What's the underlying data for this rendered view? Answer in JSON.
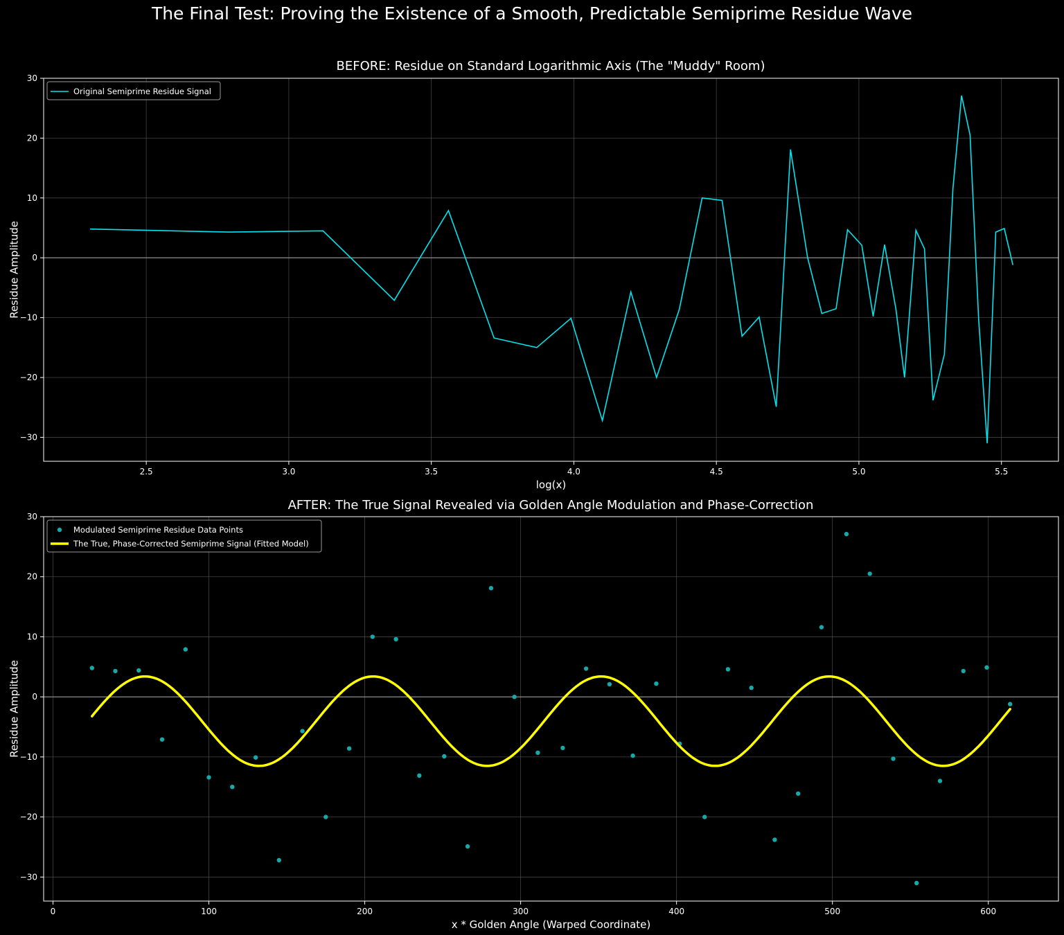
{
  "figure": {
    "suptitle": "The Final Test: Proving the Existence of a Smooth, Predictable Semiprime Residue Wave"
  },
  "colors": {
    "background": "#000000",
    "axes_edge": "#ffffff",
    "grid": "#5a5a5a",
    "zero_line": "#9a9a9a",
    "cyan": "#00e5ee",
    "scatter": "#17a8a8",
    "yellow": "#ffff00"
  },
  "chart_data": [
    {
      "type": "line",
      "title": "BEFORE: Residue on Standard Logarithmic Axis (The \"Muddy\" Room)",
      "xlabel": "log(x)",
      "ylabel": "Residue Amplitude",
      "xlim": [
        2.14,
        5.7
      ],
      "ylim": [
        -34,
        30
      ],
      "xticks": [
        2.5,
        3.0,
        3.5,
        4.0,
        4.5,
        5.0,
        5.5
      ],
      "xtick_labels": [
        "2.5",
        "3.0",
        "3.5",
        "4.0",
        "4.5",
        "5.0",
        "5.5"
      ],
      "yticks": [
        -30,
        -20,
        -10,
        0,
        10,
        20,
        30
      ],
      "ytick_labels": [
        "−30",
        "−20",
        "−10",
        "0",
        "10",
        "20",
        "30"
      ],
      "grid": true,
      "zero_line": true,
      "legend_position": "top-left",
      "series": [
        {
          "name": "Original Semiprime Residue Signal",
          "color": "#00e5ee",
          "x": [
            2.303,
            2.79,
            3.12,
            3.37,
            3.56,
            3.72,
            3.87,
            3.99,
            4.1,
            4.2,
            4.29,
            4.37,
            4.45,
            4.52,
            4.59,
            4.65,
            4.71,
            4.76,
            4.82,
            4.87,
            4.92,
            4.96,
            5.01,
            5.05,
            5.09,
            5.13,
            5.16,
            5.2,
            5.23,
            5.26,
            5.3,
            5.33,
            5.36,
            5.39,
            5.42,
            5.45,
            5.48,
            5.51,
            5.54
          ],
          "y": [
            4.8,
            4.3,
            4.5,
            -7.1,
            7.9,
            -13.4,
            -15.0,
            -10.1,
            -27.2,
            -5.7,
            -20.0,
            -8.6,
            10.0,
            9.6,
            -13.1,
            -9.9,
            -24.9,
            18.1,
            0.0,
            -9.3,
            -8.5,
            4.7,
            2.1,
            -9.8,
            2.2,
            -8.6,
            -20.0,
            4.6,
            1.5,
            -23.8,
            -16.1,
            11.6,
            27.1,
            20.5,
            -10.3,
            -31.0,
            4.3,
            4.9,
            -1.2
          ]
        }
      ]
    },
    {
      "type": "scatter",
      "title": "AFTER: The True Signal Revealed via Golden Angle Modulation and Phase-Correction",
      "xlabel": "x * Golden Angle (Warped Coordinate)",
      "ylabel": "Residue Amplitude",
      "xlim": [
        -6,
        645
      ],
      "ylim": [
        -34,
        30
      ],
      "xticks": [
        0,
        100,
        200,
        300,
        400,
        500,
        600
      ],
      "xtick_labels": [
        "0",
        "100",
        "200",
        "300",
        "400",
        "500",
        "600"
      ],
      "yticks": [
        -30,
        -20,
        -10,
        0,
        10,
        20,
        30
      ],
      "ytick_labels": [
        "−30",
        "−20",
        "−10",
        "0",
        "10",
        "20",
        "30"
      ],
      "grid": true,
      "zero_line": true,
      "legend_position": "top-left",
      "series": [
        {
          "name": "Modulated Semiprime Residue Data Points",
          "type": "scatter",
          "color": "#17a8a8",
          "x": [
            25,
            40,
            55,
            70,
            85,
            100,
            115,
            130,
            145,
            160,
            175,
            190,
            205,
            220,
            235,
            251,
            266,
            281,
            296,
            311,
            327,
            342,
            357,
            372,
            387,
            402,
            418,
            433,
            448,
            463,
            478,
            493,
            509,
            524,
            539,
            554,
            569,
            584,
            599,
            614
          ],
          "y": [
            4.8,
            4.3,
            4.4,
            -7.1,
            7.9,
            -13.4,
            -15.0,
            -10.1,
            -27.2,
            -5.7,
            -20.0,
            -8.6,
            10.0,
            9.6,
            -13.1,
            -9.9,
            -24.9,
            18.1,
            0.0,
            -9.3,
            -8.5,
            4.7,
            2.1,
            -9.8,
            2.2,
            -7.8,
            -20.0,
            4.6,
            1.5,
            -23.8,
            -16.1,
            11.6,
            27.1,
            20.5,
            -10.3,
            -31.0,
            -14.0,
            4.3,
            4.9,
            -1.2
          ]
        },
        {
          "name": "The True, Phase-Corrected Semiprime Signal (Fitted Model)",
          "type": "line",
          "color": "#ffff00",
          "model": {
            "form": "offset + amplitude * sin(2*pi*(x - x_peak)/period + pi/2)",
            "offset": -4.05,
            "amplitude": 7.45,
            "period": 146.3,
            "x_peak": 59,
            "x_start": 25,
            "x_end": 614
          }
        }
      ]
    }
  ]
}
